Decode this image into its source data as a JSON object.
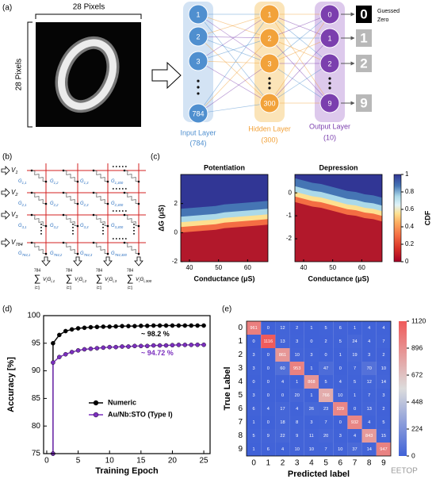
{
  "panel_labels": [
    "(a)",
    "(b)",
    "(c)",
    "(d)",
    "(e)"
  ],
  "network": {
    "image_width_label": "28 Pixels",
    "image_height_label": "28 Pixels",
    "layers": [
      {
        "nodes": [
          "1",
          "2",
          "3",
          "784"
        ],
        "name": "Input Layer",
        "size": "(784)",
        "color": "#4f8fcf",
        "panel_color": "#d3e3f4"
      },
      {
        "nodes": [
          "1",
          "2",
          "3",
          "300"
        ],
        "name": "Hidden Layer",
        "size": "(300)",
        "color": "#f2a23a",
        "panel_color": "#fbe4b8"
      },
      {
        "nodes": [
          "0",
          "1",
          "2",
          "9"
        ],
        "name": "Output Layer",
        "size": "(10)",
        "color": "#7b3fae",
        "panel_color": "#ddc9ec"
      }
    ],
    "outputs": [
      "0",
      "1",
      "2",
      "9"
    ],
    "guess_note": [
      "Guessed",
      "Zero"
    ]
  },
  "crossbar": {
    "inputs": [
      [
        "V",
        "1"
      ],
      [
        "V",
        "2"
      ],
      [
        "V",
        "3"
      ],
      [
        "V",
        "784"
      ]
    ],
    "conductances": [
      [
        [
          "G",
          "1,1"
        ],
        [
          "G",
          "1,2"
        ],
        [
          "G",
          "1,3"
        ],
        [
          "G",
          "1,300"
        ]
      ],
      [
        [
          "G",
          "2,1"
        ],
        [
          "G",
          "2,2"
        ],
        [
          "G",
          "2,3"
        ],
        [
          "G",
          "2,300"
        ]
      ],
      [
        [
          "G",
          "3,1"
        ],
        [
          "G",
          "3,2"
        ],
        [
          "G",
          "3,3"
        ],
        [
          "G",
          "3,300"
        ]
      ],
      [
        [
          "G",
          "784,1"
        ],
        [
          "G",
          "784,2"
        ],
        [
          "G",
          "784,3"
        ],
        [
          "G",
          "784,300"
        ]
      ]
    ],
    "sum_symbol": "∑",
    "outputs": [
      {
        "upper": "784",
        "lower": "i=1",
        "terms": [
          [
            "V",
            "i"
          ],
          [
            "G",
            "i,1"
          ]
        ]
      },
      {
        "upper": "784",
        "lower": "i=1",
        "terms": [
          [
            "V",
            "i"
          ],
          [
            "G",
            "i,2"
          ]
        ]
      },
      {
        "upper": "784",
        "lower": "i=1",
        "terms": [
          [
            "V",
            "i"
          ],
          [
            "G",
            "i,3"
          ]
        ]
      },
      {
        "upper": "784",
        "lower": "i=1",
        "terms": [
          [
            "V",
            "i"
          ],
          [
            "G",
            "i,300"
          ]
        ]
      }
    ]
  },
  "chart_data": [
    {
      "type": "cdf_map",
      "title": "Potentiation",
      "xlabel": "Conductance (μS)",
      "ylabel": "ΔG (μS)",
      "x": [
        37,
        40,
        43,
        46,
        49,
        52,
        55,
        58,
        61,
        64,
        67
      ],
      "values": [
        0.0,
        0.05,
        0.1,
        0.15,
        0.2,
        0.3,
        0.35,
        0.4,
        0.45,
        0.5,
        0.55
      ],
      "xlim": [
        37,
        67
      ],
      "xticks": [
        40,
        50,
        60
      ],
      "ylim": [
        -2,
        4
      ],
      "yticks": [
        -2,
        0,
        2
      ]
    },
    {
      "type": "cdf_map",
      "title": "Depression",
      "xlabel": "Conductance (μS)",
      "x": [
        37,
        40,
        43,
        46,
        49,
        52,
        55,
        58,
        61,
        64,
        67
      ],
      "values": [
        -0.4,
        -0.5,
        -0.6,
        -0.65,
        -0.75,
        -0.85,
        -0.95,
        -1.0,
        -1.1,
        -1.15,
        -1.25
      ],
      "xlim": [
        37,
        67
      ],
      "xticks": [
        40,
        50,
        60
      ],
      "ylim": [
        -3,
        0.8
      ],
      "yticks": [
        -2,
        -1,
        0
      ],
      "colorbar_label": "CDF",
      "clim": [
        0,
        1
      ],
      "colorbar_ticks": [
        0,
        0.2,
        0.4,
        0.6,
        0.8,
        1
      ]
    },
    {
      "type": "line",
      "xlabel": "Training Epoch",
      "ylabel": "Accuracy [%]",
      "x": [
        1,
        1,
        2,
        3,
        4,
        5,
        6,
        7,
        8,
        9,
        10,
        11,
        12,
        13,
        14,
        15,
        16,
        17,
        18,
        19,
        20,
        21,
        22,
        23,
        24,
        25
      ],
      "series": [
        {
          "name": "Numeric",
          "color": "#000000",
          "values": [
            75,
            95,
            96.5,
            97.2,
            97.5,
            97.7,
            97.8,
            97.9,
            97.95,
            98,
            98,
            98.05,
            98.1,
            98.1,
            98.1,
            98.15,
            98.15,
            98.2,
            98.2,
            98.2,
            98.2,
            98.2,
            98.2,
            98.2,
            98.2,
            98.2
          ]
        },
        {
          "name": "Au/Nb:STO (Type I)",
          "color": "#7b2fbe",
          "values": [
            75,
            91.5,
            92.5,
            93,
            93.4,
            93.7,
            93.9,
            94.0,
            94.1,
            94.2,
            94.3,
            94.3,
            94.4,
            94.4,
            94.5,
            94.5,
            94.5,
            94.6,
            94.6,
            94.6,
            94.65,
            94.7,
            94.7,
            94.7,
            94.72,
            94.72
          ]
        }
      ],
      "annotations": [
        {
          "text": "~ 98.2 %",
          "color": "#000000"
        },
        {
          "text": "~ 94.72 %",
          "color": "#7b2fbe"
        }
      ],
      "xlim": [
        -0.5,
        26
      ],
      "xticks": [
        0,
        5,
        10,
        15,
        20,
        25
      ],
      "ylim": [
        75,
        100
      ],
      "yticks": [
        75,
        80,
        85,
        90,
        95,
        100
      ]
    },
    {
      "type": "confusion_matrix",
      "xlabel": "Predicted label",
      "ylabel": "True Label",
      "categories": [
        "0",
        "1",
        "2",
        "3",
        "4",
        "5",
        "6",
        "7",
        "8",
        "9"
      ],
      "y_categories": [
        "0",
        "1",
        "2",
        "3",
        "4",
        "5",
        "6",
        "7",
        "8",
        "9"
      ],
      "values": [
        [
          961,
          0,
          12,
          2,
          1,
          5,
          6,
          1,
          4,
          4
        ],
        [
          0,
          1116,
          13,
          3,
          0,
          2,
          5,
          24,
          4,
          7
        ],
        [
          3,
          0,
          861,
          10,
          3,
          0,
          1,
          19,
          3,
          2
        ],
        [
          3,
          0,
          60,
          953,
          1,
          47,
          0,
          7,
          70,
          10
        ],
        [
          0,
          0,
          4,
          1,
          868,
          5,
          4,
          5,
          12,
          14
        ],
        [
          3,
          0,
          0,
          20,
          1,
          766,
          10,
          1,
          7,
          3
        ],
        [
          6,
          4,
          17,
          4,
          26,
          23,
          929,
          0,
          13,
          2
        ],
        [
          1,
          0,
          18,
          8,
          3,
          7,
          0,
          932,
          4,
          5
        ],
        [
          5,
          9,
          22,
          9,
          11,
          20,
          3,
          4,
          843,
          15
        ],
        [
          1,
          6,
          4,
          10,
          10,
          7,
          10,
          37,
          14,
          947
        ]
      ],
      "clim": [
        0,
        1120
      ],
      "colorbar_ticks": [
        0,
        224,
        448,
        672,
        896,
        1120
      ]
    }
  ],
  "watermark": "EETOP"
}
